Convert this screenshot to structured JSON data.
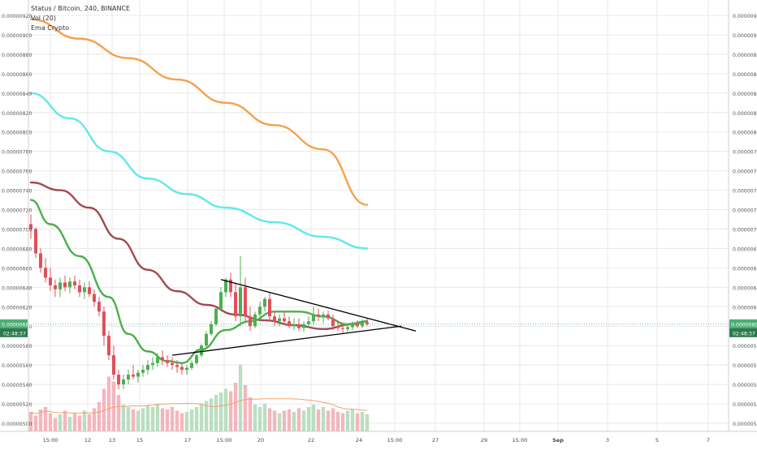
{
  "legend": {
    "symbol_line": "Status / Bitcoin, 240, BINANCE",
    "volume_label": "Vol (20)",
    "ema_label": "Ema Crypto"
  },
  "colors": {
    "up": "#4caf50",
    "down": "#e0505a",
    "vol_up": "#b9dfc0",
    "vol_down": "#f4b6be",
    "ema_orange": "#f6a04d",
    "ema_cyan": "#5fe8ee",
    "ema_brown": "#a24a4e",
    "ema_green": "#4cae4c",
    "price_tag": "#4cae74",
    "grid": "#e8e8e8"
  },
  "chart_data": {
    "type": "candlestick",
    "symbol": "Status / Bitcoin, 240, BINANCE",
    "ylim": [
      5e-06,
      9.2e-06
    ],
    "y_tick_labels": [
      "0.00000500",
      "0.00000520",
      "0.00000540",
      "0.00000560",
      "0.00000580",
      "0.00000600",
      "0.00000620",
      "0.00000640",
      "0.00000660",
      "0.00000680",
      "0.00000700",
      "0.00000720",
      "0.00000740",
      "0.00000760",
      "0.00000780",
      "0.00000800",
      "0.00000820",
      "0.00000840",
      "0.00000860",
      "0.00000880",
      "0.00000900",
      "0.00000920"
    ],
    "x_tick_labels": [
      "15:00",
      "12",
      "13",
      "15",
      "17",
      "15:00",
      "20",
      "22",
      "24",
      "15:00",
      "27",
      "29",
      "15:00",
      "Sep",
      "3",
      "5",
      "7"
    ],
    "last_price": "0.00000602",
    "countdown": "02:48:37",
    "candles": [
      [
        7.05,
        7.15,
        6.9,
        7.0
      ],
      [
        7.0,
        7.02,
        6.7,
        6.75
      ],
      [
        6.75,
        6.8,
        6.55,
        6.6
      ],
      [
        6.6,
        6.7,
        6.45,
        6.5
      ],
      [
        6.5,
        6.6,
        6.36,
        6.42
      ],
      [
        6.42,
        6.48,
        6.3,
        6.38
      ],
      [
        6.38,
        6.5,
        6.3,
        6.45
      ],
      [
        6.45,
        6.52,
        6.36,
        6.4
      ],
      [
        6.4,
        6.5,
        6.34,
        6.46
      ],
      [
        6.46,
        6.52,
        6.38,
        6.42
      ],
      [
        6.42,
        6.48,
        6.3,
        6.35
      ],
      [
        6.35,
        6.45,
        6.28,
        6.4
      ],
      [
        6.4,
        6.46,
        6.3,
        6.33
      ],
      [
        6.33,
        6.38,
        6.2,
        6.25
      ],
      [
        6.25,
        6.3,
        6.1,
        6.15
      ],
      [
        6.15,
        6.2,
        5.8,
        5.9
      ],
      [
        5.9,
        5.95,
        5.65,
        5.7
      ],
      [
        5.7,
        5.8,
        5.45,
        5.5
      ],
      [
        5.5,
        5.55,
        5.35,
        5.4
      ],
      [
        5.4,
        5.5,
        5.35,
        5.45
      ],
      [
        5.45,
        5.55,
        5.4,
        5.5
      ],
      [
        5.5,
        5.6,
        5.45,
        5.48
      ],
      [
        5.48,
        5.55,
        5.42,
        5.52
      ],
      [
        5.52,
        5.6,
        5.48,
        5.55
      ],
      [
        5.55,
        5.65,
        5.5,
        5.6
      ],
      [
        5.6,
        5.68,
        5.55,
        5.62
      ],
      [
        5.62,
        5.72,
        5.58,
        5.68
      ],
      [
        5.68,
        5.75,
        5.6,
        5.65
      ],
      [
        5.65,
        5.7,
        5.58,
        5.62
      ],
      [
        5.62,
        5.68,
        5.55,
        5.6
      ],
      [
        5.6,
        5.65,
        5.52,
        5.58
      ],
      [
        5.58,
        5.62,
        5.5,
        5.55
      ],
      [
        5.55,
        5.6,
        5.5,
        5.57
      ],
      [
        5.57,
        5.65,
        5.55,
        5.62
      ],
      [
        5.62,
        5.72,
        5.6,
        5.7
      ],
      [
        5.7,
        5.82,
        5.68,
        5.8
      ],
      [
        5.8,
        5.95,
        5.78,
        5.92
      ],
      [
        5.92,
        6.05,
        5.9,
        6.02
      ],
      [
        6.02,
        6.2,
        6.0,
        6.18
      ],
      [
        6.18,
        6.4,
        6.15,
        6.35
      ],
      [
        6.35,
        6.5,
        6.3,
        6.48
      ],
      [
        6.48,
        6.55,
        6.3,
        6.35
      ],
      [
        6.35,
        6.45,
        6.05,
        6.1
      ],
      [
        6.1,
        6.72,
        6.0,
        6.4
      ],
      [
        6.4,
        6.5,
        6.05,
        6.1
      ],
      [
        6.1,
        6.2,
        5.95,
        6.0
      ],
      [
        6.0,
        6.15,
        5.98,
        6.12
      ],
      [
        6.12,
        6.25,
        6.08,
        6.2
      ],
      [
        6.2,
        6.3,
        6.15,
        6.28
      ],
      [
        6.28,
        6.35,
        6.05,
        6.1
      ],
      [
        6.1,
        6.15,
        6.0,
        6.05
      ],
      [
        6.05,
        6.12,
        6.0,
        6.08
      ],
      [
        6.08,
        6.15,
        6.02,
        6.05
      ],
      [
        6.05,
        6.1,
        5.98,
        6.0
      ],
      [
        6.0,
        6.08,
        5.96,
        6.02
      ],
      [
        6.02,
        6.08,
        5.95,
        5.98
      ],
      [
        5.98,
        6.05,
        5.94,
        6.02
      ],
      [
        6.02,
        6.1,
        5.98,
        6.05
      ],
      [
        6.05,
        6.2,
        6.02,
        6.12
      ],
      [
        6.12,
        6.18,
        6.05,
        6.1
      ],
      [
        6.1,
        6.15,
        6.03,
        6.12
      ],
      [
        6.12,
        6.16,
        6.06,
        6.08
      ],
      [
        6.08,
        6.12,
        5.96,
        6.0
      ],
      [
        6.0,
        6.06,
        5.95,
        5.98
      ],
      [
        5.98,
        6.02,
        5.93,
        5.97
      ],
      [
        5.97,
        6.02,
        5.94,
        5.99
      ],
      [
        5.99,
        6.05,
        5.96,
        6.02
      ],
      [
        6.02,
        6.06,
        5.98,
        6.0
      ],
      [
        6.0,
        6.07,
        5.98,
        6.04
      ],
      [
        6.04,
        6.08,
        6.0,
        6.02
      ]
    ],
    "volume": [
      [
        32,
        0
      ],
      [
        26,
        0
      ],
      [
        36,
        0
      ],
      [
        40,
        0
      ],
      [
        30,
        0
      ],
      [
        22,
        0
      ],
      [
        28,
        1
      ],
      [
        34,
        0
      ],
      [
        24,
        1
      ],
      [
        30,
        0
      ],
      [
        26,
        0
      ],
      [
        34,
        1
      ],
      [
        28,
        0
      ],
      [
        38,
        0
      ],
      [
        48,
        0
      ],
      [
        70,
        0
      ],
      [
        90,
        0
      ],
      [
        82,
        0
      ],
      [
        60,
        0
      ],
      [
        44,
        1
      ],
      [
        40,
        1
      ],
      [
        36,
        0
      ],
      [
        34,
        1
      ],
      [
        38,
        1
      ],
      [
        42,
        1
      ],
      [
        40,
        1
      ],
      [
        46,
        1
      ],
      [
        38,
        0
      ],
      [
        36,
        0
      ],
      [
        40,
        0
      ],
      [
        34,
        0
      ],
      [
        30,
        0
      ],
      [
        32,
        1
      ],
      [
        36,
        1
      ],
      [
        40,
        1
      ],
      [
        46,
        1
      ],
      [
        50,
        1
      ],
      [
        54,
        1
      ],
      [
        60,
        1
      ],
      [
        64,
        1
      ],
      [
        70,
        1
      ],
      [
        66,
        0
      ],
      [
        80,
        0
      ],
      [
        110,
        1
      ],
      [
        76,
        0
      ],
      [
        56,
        0
      ],
      [
        44,
        1
      ],
      [
        40,
        1
      ],
      [
        46,
        1
      ],
      [
        38,
        0
      ],
      [
        34,
        0
      ],
      [
        30,
        1
      ],
      [
        34,
        0
      ],
      [
        36,
        0
      ],
      [
        32,
        1
      ],
      [
        38,
        0
      ],
      [
        34,
        1
      ],
      [
        40,
        1
      ],
      [
        44,
        1
      ],
      [
        36,
        0
      ],
      [
        40,
        1
      ],
      [
        34,
        0
      ],
      [
        38,
        0
      ],
      [
        32,
        0
      ],
      [
        30,
        0
      ],
      [
        34,
        1
      ],
      [
        36,
        1
      ],
      [
        30,
        0
      ],
      [
        32,
        1
      ],
      [
        28,
        1
      ]
    ],
    "ema_orange": [
      [
        0,
        9.16
      ],
      [
        10,
        8.96
      ],
      [
        20,
        8.76
      ],
      [
        30,
        8.54
      ],
      [
        40,
        8.3
      ],
      [
        50,
        8.07
      ],
      [
        60,
        7.82
      ],
      [
        69,
        7.25
      ]
    ],
    "ema_cyan": [
      [
        0,
        8.4
      ],
      [
        8,
        8.14
      ],
      [
        16,
        7.8
      ],
      [
        24,
        7.52
      ],
      [
        32,
        7.36
      ],
      [
        40,
        7.22
      ],
      [
        50,
        7.07
      ],
      [
        60,
        6.92
      ],
      [
        69,
        6.8
      ]
    ],
    "ema_brown": [
      [
        0,
        7.48
      ],
      [
        6,
        7.4
      ],
      [
        12,
        7.22
      ],
      [
        18,
        6.9
      ],
      [
        24,
        6.58
      ],
      [
        30,
        6.36
      ],
      [
        36,
        6.22
      ],
      [
        42,
        6.12
      ],
      [
        48,
        6.06
      ],
      [
        54,
        6.01
      ],
      [
        60,
        5.97
      ],
      [
        66,
        6.02
      ],
      [
        69,
        6.05
      ]
    ],
    "ema_green": [
      [
        0,
        7.3
      ],
      [
        4,
        7.05
      ],
      [
        10,
        6.72
      ],
      [
        16,
        6.3
      ],
      [
        20,
        5.92
      ],
      [
        24,
        5.74
      ],
      [
        28,
        5.64
      ],
      [
        31,
        5.62
      ],
      [
        35,
        5.76
      ],
      [
        40,
        5.96
      ],
      [
        45,
        6.05
      ],
      [
        50,
        6.15
      ],
      [
        55,
        6.15
      ],
      [
        60,
        6.1
      ],
      [
        65,
        6.02
      ],
      [
        69,
        6.05
      ]
    ],
    "triangle_upper": [
      [
        39,
        6.48
      ],
      [
        79,
        5.95
      ]
    ],
    "triangle_lower": [
      [
        29,
        5.7
      ],
      [
        76,
        6.0
      ]
    ]
  }
}
